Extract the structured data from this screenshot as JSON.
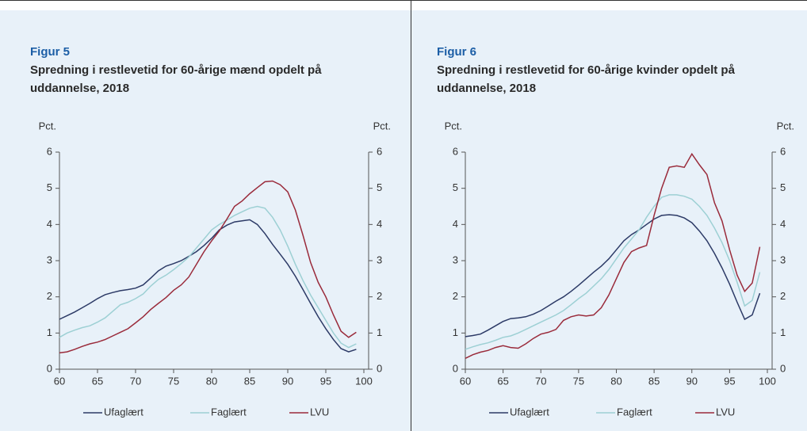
{
  "chart_data": [
    {
      "type": "line",
      "title": "Figur 5",
      "subtitle": "Spredning i restlevetid for 60-årige mænd opdelt på uddannelse, 2018",
      "ylabel": "Pct.",
      "y2label": "Pct.",
      "x": [
        60,
        61,
        62,
        63,
        64,
        65,
        66,
        67,
        68,
        69,
        70,
        71,
        72,
        73,
        74,
        75,
        76,
        77,
        78,
        79,
        80,
        81,
        82,
        83,
        84,
        85,
        86,
        87,
        88,
        89,
        90,
        91,
        92,
        93,
        94,
        95,
        96,
        97,
        98,
        99
      ],
      "xlim": [
        60,
        100
      ],
      "xticks": [
        60,
        65,
        70,
        75,
        80,
        85,
        90,
        95,
        100
      ],
      "ylim": [
        0,
        6
      ],
      "yticks": [
        0,
        1,
        2,
        3,
        4,
        5,
        6
      ],
      "y2lim": [
        0,
        6
      ],
      "y2ticks": [
        0,
        1,
        2,
        3,
        4,
        5,
        6
      ],
      "legend": "bottom",
      "series": [
        {
          "name": "Ufaglært",
          "color": "#2c3a66",
          "values": [
            1.38,
            1.48,
            1.58,
            1.7,
            1.82,
            1.95,
            2.06,
            2.12,
            2.17,
            2.2,
            2.24,
            2.33,
            2.52,
            2.72,
            2.85,
            2.92,
            3.0,
            3.12,
            3.25,
            3.42,
            3.62,
            3.85,
            3.98,
            4.07,
            4.1,
            4.13,
            4.0,
            3.75,
            3.45,
            3.18,
            2.9,
            2.57,
            2.2,
            1.82,
            1.45,
            1.12,
            0.82,
            0.57,
            0.48,
            0.55
          ]
        },
        {
          "name": "Faglært",
          "color": "#9dd0d4",
          "values": [
            0.88,
            1.0,
            1.08,
            1.15,
            1.2,
            1.3,
            1.42,
            1.6,
            1.78,
            1.85,
            1.95,
            2.08,
            2.3,
            2.48,
            2.6,
            2.75,
            2.92,
            3.1,
            3.35,
            3.6,
            3.85,
            4.0,
            4.12,
            4.25,
            4.35,
            4.45,
            4.5,
            4.45,
            4.2,
            3.85,
            3.4,
            2.9,
            2.45,
            2.05,
            1.7,
            1.35,
            1.0,
            0.72,
            0.6,
            0.7
          ]
        },
        {
          "name": "LVU",
          "color": "#9a2b3b",
          "values": [
            0.45,
            0.48,
            0.55,
            0.63,
            0.7,
            0.75,
            0.82,
            0.92,
            1.02,
            1.12,
            1.28,
            1.45,
            1.65,
            1.82,
            1.98,
            2.18,
            2.33,
            2.55,
            2.9,
            3.25,
            3.55,
            3.82,
            4.15,
            4.5,
            4.65,
            4.85,
            5.02,
            5.18,
            5.2,
            5.1,
            4.9,
            4.4,
            3.7,
            2.95,
            2.4,
            2.0,
            1.5,
            1.05,
            0.88,
            1.02
          ]
        }
      ]
    },
    {
      "type": "line",
      "title": "Figur 6",
      "subtitle": "Spredning i restlevetid for 60-årige kvinder opdelt på uddannelse, 2018",
      "ylabel": "Pct.",
      "y2label": "Pct.",
      "x": [
        60,
        61,
        62,
        63,
        64,
        65,
        66,
        67,
        68,
        69,
        70,
        71,
        72,
        73,
        74,
        75,
        76,
        77,
        78,
        79,
        80,
        81,
        82,
        83,
        84,
        85,
        86,
        87,
        88,
        89,
        90,
        91,
        92,
        93,
        94,
        95,
        96,
        97,
        98,
        99
      ],
      "xlim": [
        60,
        100
      ],
      "xticks": [
        60,
        65,
        70,
        75,
        80,
        85,
        90,
        95,
        100
      ],
      "ylim": [
        0,
        6
      ],
      "yticks": [
        0,
        1,
        2,
        3,
        4,
        5,
        6
      ],
      "y2lim": [
        0,
        6
      ],
      "y2ticks": [
        0,
        1,
        2,
        3,
        4,
        5,
        6
      ],
      "legend": "bottom",
      "series": [
        {
          "name": "Ufaglært",
          "color": "#2c3a66",
          "values": [
            0.9,
            0.93,
            0.97,
            1.08,
            1.2,
            1.32,
            1.4,
            1.42,
            1.45,
            1.52,
            1.62,
            1.75,
            1.88,
            2.0,
            2.15,
            2.32,
            2.5,
            2.68,
            2.85,
            3.05,
            3.3,
            3.55,
            3.72,
            3.85,
            4.0,
            4.15,
            4.25,
            4.27,
            4.25,
            4.18,
            4.05,
            3.82,
            3.55,
            3.2,
            2.8,
            2.35,
            1.85,
            1.38,
            1.5,
            2.1
          ]
        },
        {
          "name": "Faglært",
          "color": "#9dd0d4",
          "values": [
            0.55,
            0.62,
            0.68,
            0.73,
            0.8,
            0.88,
            0.92,
            1.0,
            1.1,
            1.2,
            1.3,
            1.4,
            1.5,
            1.62,
            1.78,
            1.95,
            2.1,
            2.3,
            2.5,
            2.75,
            3.05,
            3.35,
            3.6,
            3.85,
            4.2,
            4.5,
            4.75,
            4.82,
            4.82,
            4.78,
            4.7,
            4.5,
            4.25,
            3.9,
            3.5,
            3.0,
            2.4,
            1.75,
            1.9,
            2.68
          ]
        },
        {
          "name": "LVU",
          "color": "#9a2b3b",
          "values": [
            0.3,
            0.4,
            0.47,
            0.52,
            0.6,
            0.65,
            0.6,
            0.58,
            0.7,
            0.85,
            0.97,
            1.02,
            1.1,
            1.35,
            1.45,
            1.5,
            1.47,
            1.5,
            1.7,
            2.05,
            2.5,
            2.95,
            3.25,
            3.35,
            3.42,
            4.25,
            5.0,
            5.58,
            5.62,
            5.58,
            5.95,
            5.65,
            5.38,
            4.6,
            4.1,
            3.3,
            2.6,
            2.15,
            2.38,
            3.38
          ]
        }
      ]
    }
  ]
}
